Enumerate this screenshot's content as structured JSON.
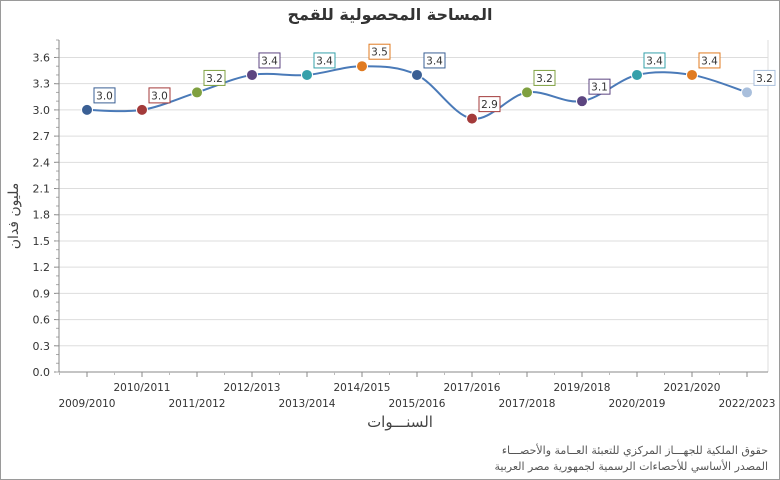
{
  "chart_data": {
    "type": "line",
    "title": "المساحة المحصولية للقمح",
    "xlabel": "السنـــوات",
    "ylabel": "مليون فدان",
    "ylim": [
      0,
      3.8
    ],
    "yticks": [
      "0.0",
      "0.3",
      "0.6",
      "0.9",
      "1.2",
      "1.5",
      "1.8",
      "2.1",
      "2.4",
      "2.7",
      "3.0",
      "3.3",
      "3.6"
    ],
    "grid": true,
    "categories": [
      "2009/2010",
      "2010/2011",
      "2011/2012",
      "2012/2013",
      "2013/2014",
      "2014/2015",
      "2015/2016",
      "2016/2017",
      "2017/2018",
      "2018/2019",
      "2019/2020",
      "2020/2021",
      "2022/2023"
    ],
    "category_labels": [
      "2009/2010",
      "2010/2011",
      "2011/2012",
      "2012/2013",
      "2013/2014",
      "2014/2015",
      "2015/2016",
      "2017/2016",
      "2017/2018",
      "2019/2018",
      "2020/2019",
      "2021/2020",
      "2022/2023"
    ],
    "series": [
      {
        "values": [
          3.0,
          3.0,
          3.2,
          3.4,
          3.4,
          3.5,
          3.4,
          2.9,
          3.2,
          3.1,
          3.4,
          3.4,
          3.2
        ]
      }
    ],
    "data_labels": [
      "3.0",
      "3.0",
      "3.2",
      "3.4",
      "3.4",
      "3.5",
      "3.4",
      "2.9",
      "3.2",
      "3.1",
      "3.4",
      "3.4",
      "3.2"
    ],
    "line_color": "#4a7ab8",
    "point_colors": [
      "#3a5f94",
      "#a33a3a",
      "#7fa040",
      "#5c4580",
      "#35a0aa",
      "#e07b22",
      "#3a5f94",
      "#a33a3a",
      "#7fa040",
      "#5c4580",
      "#35a0aa",
      "#e07b22",
      "#a9bfdc"
    ]
  },
  "footnotes": {
    "line1": "حقوق الملكية للجهـــاز المركزي للتعبئة العــامة والأحصـــاء",
    "line2": "المصدر الأساسي للأحصاءات الرسمية لجمهورية مصر العربية"
  }
}
